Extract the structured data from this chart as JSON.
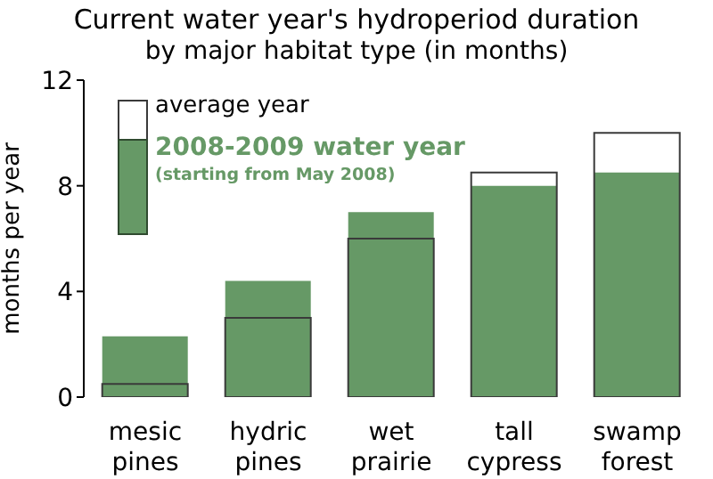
{
  "chart_data": {
    "type": "bar",
    "title": "Current water year's hydroperiod duration",
    "subtitle": "by major habitat type (in months)",
    "ylabel": "months per year",
    "categories": [
      "mesic pines",
      "hydric pines",
      "wet prairie",
      "tall cypress",
      "swamp forest"
    ],
    "series": [
      {
        "name": "2008-2009 water year",
        "color": "#669966",
        "values": [
          2.3,
          4.4,
          7.0,
          8.0,
          8.5
        ]
      },
      {
        "name": "average year",
        "color": "#3a3a3a",
        "values": [
          0.5,
          3.0,
          6.0,
          8.5,
          10.0
        ]
      }
    ],
    "ylim": [
      0,
      12
    ],
    "yticks": [
      0,
      4,
      8,
      12
    ],
    "legend": "top left",
    "annotations": [
      "(starting from May 2008)"
    ]
  }
}
